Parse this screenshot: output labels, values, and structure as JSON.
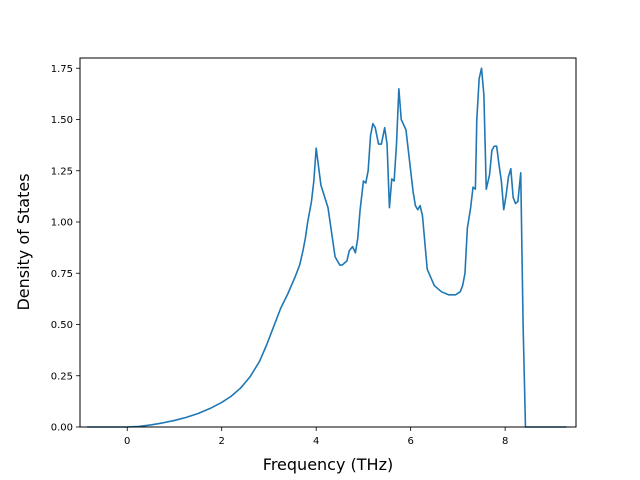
{
  "chart_data": {
    "type": "line",
    "title": "",
    "xlabel": "Frequency (THz)",
    "ylabel": "Density of States",
    "xlim": [
      -1.0,
      9.5
    ],
    "ylim": [
      0.0,
      1.8
    ],
    "xticks": [
      0,
      2,
      4,
      6,
      8
    ],
    "xtick_labels": [
      "0",
      "2",
      "4",
      "6",
      "8"
    ],
    "yticks": [
      0.0,
      0.25,
      0.5,
      0.75,
      1.0,
      1.25,
      1.5,
      1.75
    ],
    "ytick_labels": [
      "0.00",
      "0.25",
      "0.50",
      "0.75",
      "1.00",
      "1.25",
      "1.50",
      "1.75"
    ],
    "grid": false,
    "legend": false,
    "colors": {
      "line": "#1f77b4",
      "axes": "#000000"
    },
    "series": [
      {
        "x": [
          -0.85,
          -0.5,
          0.0,
          0.25,
          0.5,
          0.75,
          1.0,
          1.25,
          1.5,
          1.75,
          2.0,
          2.2,
          2.4,
          2.6,
          2.8,
          2.95,
          3.1,
          3.25,
          3.4,
          3.55,
          3.65,
          3.72,
          3.77,
          3.82,
          3.9,
          3.95,
          4.0,
          4.1,
          4.25,
          4.4,
          4.5,
          4.55,
          4.6,
          4.65,
          4.7,
          4.77,
          4.83,
          4.88,
          4.93,
          5.0,
          5.05,
          5.1,
          5.15,
          5.2,
          5.25,
          5.32,
          5.38,
          5.45,
          5.5,
          5.55,
          5.6,
          5.65,
          5.7,
          5.75,
          5.8,
          5.9,
          6.0,
          6.05,
          6.1,
          6.15,
          6.2,
          6.25,
          6.35,
          6.5,
          6.65,
          6.8,
          6.95,
          7.05,
          7.1,
          7.15,
          7.2,
          7.27,
          7.32,
          7.37,
          7.4,
          7.45,
          7.5,
          7.55,
          7.6,
          7.67,
          7.72,
          7.77,
          7.82,
          7.87,
          7.92,
          7.97,
          8.02,
          8.07,
          8.12,
          8.17,
          8.22,
          8.27,
          8.33,
          8.38,
          8.43,
          8.47,
          8.5,
          8.55,
          9.3
        ],
        "y": [
          0.0,
          0.0,
          0.0,
          0.003,
          0.01,
          0.02,
          0.032,
          0.047,
          0.066,
          0.09,
          0.12,
          0.15,
          0.19,
          0.245,
          0.32,
          0.4,
          0.49,
          0.58,
          0.65,
          0.73,
          0.79,
          0.86,
          0.92,
          1.0,
          1.1,
          1.2,
          1.36,
          1.18,
          1.07,
          0.83,
          0.79,
          0.79,
          0.8,
          0.81,
          0.86,
          0.88,
          0.85,
          0.92,
          1.06,
          1.2,
          1.19,
          1.25,
          1.42,
          1.48,
          1.46,
          1.38,
          1.38,
          1.46,
          1.38,
          1.07,
          1.21,
          1.2,
          1.38,
          1.65,
          1.5,
          1.45,
          1.25,
          1.15,
          1.08,
          1.06,
          1.08,
          1.03,
          0.77,
          0.69,
          0.66,
          0.645,
          0.645,
          0.66,
          0.69,
          0.75,
          0.97,
          1.07,
          1.17,
          1.16,
          1.5,
          1.7,
          1.75,
          1.62,
          1.16,
          1.23,
          1.35,
          1.37,
          1.37,
          1.28,
          1.2,
          1.06,
          1.13,
          1.22,
          1.26,
          1.12,
          1.09,
          1.1,
          1.24,
          0.5,
          0.0,
          0.0,
          0.0,
          0.0,
          0.0
        ]
      }
    ]
  }
}
